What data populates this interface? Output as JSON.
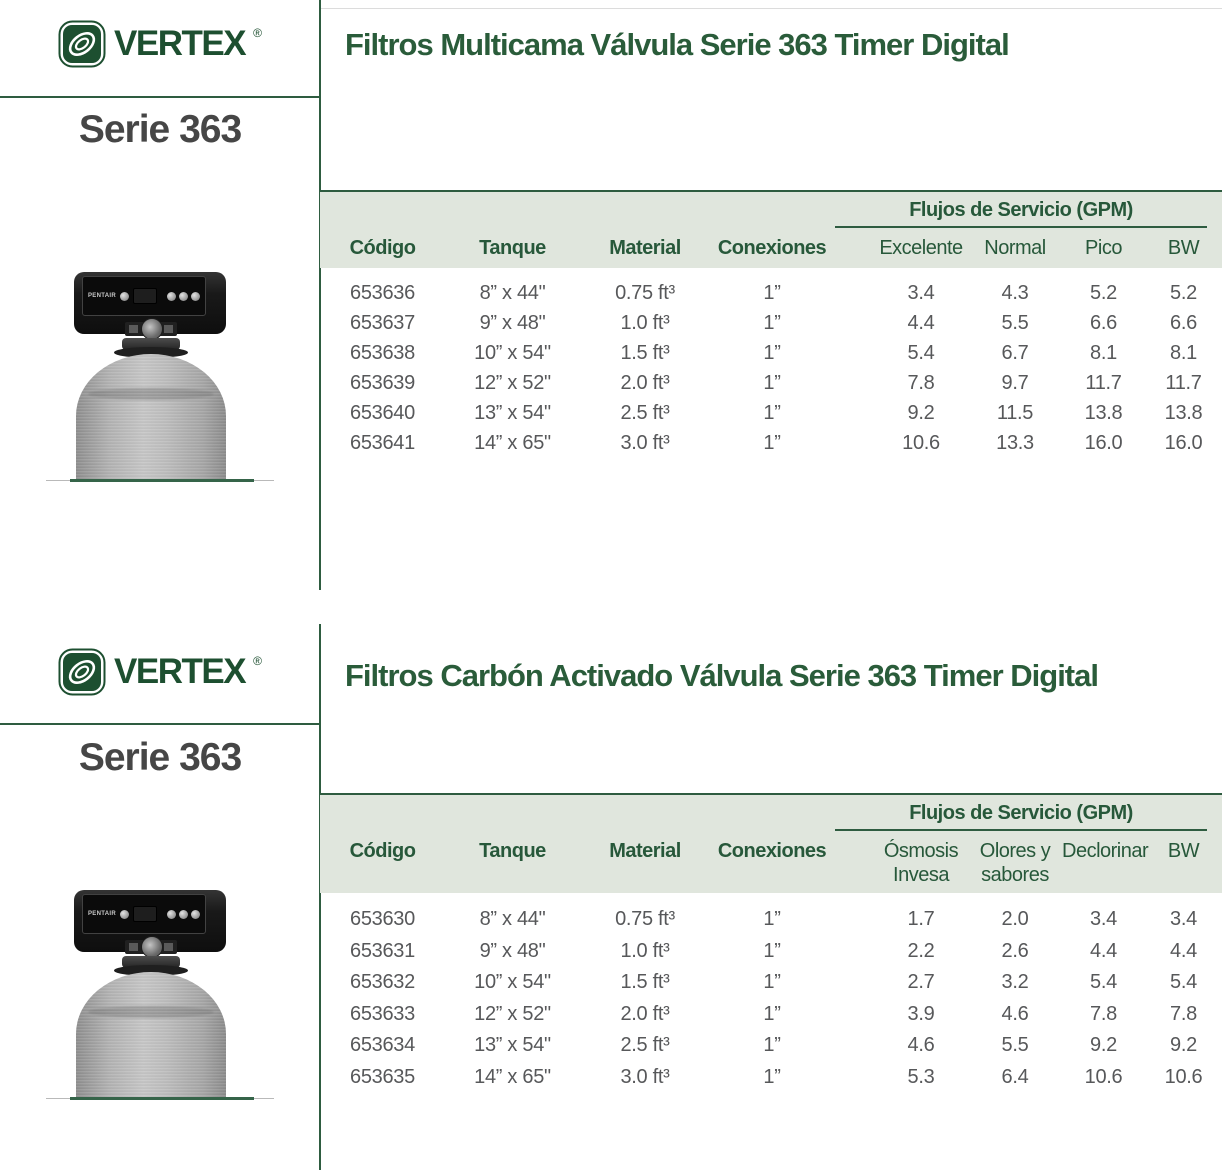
{
  "brand": {
    "name": "VERTEX",
    "registered": "®",
    "valve_brand": "PENTAIR"
  },
  "sections": [
    {
      "series_label": "Serie 363",
      "title": "Filtros Multicama Válvula Serie 363 Timer Digital",
      "table": {
        "flows_group_label": "Flujos de Servicio (GPM)",
        "headers": [
          "Código",
          "Tanque",
          "Material",
          "Conexiones"
        ],
        "flow_headers": [
          "Excelente",
          "Normal",
          "Pico",
          "BW"
        ],
        "rows": [
          {
            "codigo": "653636",
            "tanque": "8” x 44\"",
            "material": "0.75 ft³",
            "conexiones": "1”",
            "f1": "3.4",
            "f2": "4.3",
            "f3": "5.2",
            "f4": "5.2"
          },
          {
            "codigo": "653637",
            "tanque": "9” x 48\"",
            "material": "1.0 ft³",
            "conexiones": "1”",
            "f1": "4.4",
            "f2": "5.5",
            "f3": "6.6",
            "f4": "6.6"
          },
          {
            "codigo": "653638",
            "tanque": "10” x 54\"",
            "material": "1.5 ft³",
            "conexiones": "1”",
            "f1": "5.4",
            "f2": "6.7",
            "f3": "8.1",
            "f4": "8.1"
          },
          {
            "codigo": "653639",
            "tanque": "12” x 52\"",
            "material": "2.0 ft³",
            "conexiones": "1”",
            "f1": "7.8",
            "f2": "9.7",
            "f3": "11.7",
            "f4": "11.7"
          },
          {
            "codigo": "653640",
            "tanque": "13” x 54\"",
            "material": "2.5 ft³",
            "conexiones": "1”",
            "f1": "9.2",
            "f2": "11.5",
            "f3": "13.8",
            "f4": "13.8"
          },
          {
            "codigo": "653641",
            "tanque": "14” x 65\"",
            "material": "3.0 ft³",
            "conexiones": "1”",
            "f1": "10.6",
            "f2": "13.3",
            "f3": "16.0",
            "f4": "16.0"
          }
        ]
      }
    },
    {
      "series_label": "Serie 363",
      "title": "Filtros Carbón Activado Válvula Serie 363 Timer Digital",
      "table": {
        "flows_group_label": "Flujos de Servicio (GPM)",
        "headers": [
          "Código",
          "Tanque",
          "Material",
          "Conexiones"
        ],
        "flow_headers": [
          "Ósmosis\nInvesa",
          "Olores y\nsabores",
          "Declorinar",
          "BW"
        ],
        "rows": [
          {
            "codigo": "653630",
            "tanque": "8” x 44\"",
            "material": "0.75 ft³",
            "conexiones": "1”",
            "f1": "1.7",
            "f2": "2.0",
            "f3": "3.4",
            "f4": "3.4"
          },
          {
            "codigo": "653631",
            "tanque": "9” x 48\"",
            "material": "1.0 ft³",
            "conexiones": "1”",
            "f1": "2.2",
            "f2": "2.6",
            "f3": "4.4",
            "f4": "4.4"
          },
          {
            "codigo": "653632",
            "tanque": "10” x 54\"",
            "material": "1.5 ft³",
            "conexiones": "1”",
            "f1": "2.7",
            "f2": "3.2",
            "f3": "5.4",
            "f4": "5.4"
          },
          {
            "codigo": "653633",
            "tanque": "12” x 52\"",
            "material": "2.0 ft³",
            "conexiones": "1”",
            "f1": "3.9",
            "f2": "4.6",
            "f3": "7.8",
            "f4": "7.8"
          },
          {
            "codigo": "653634",
            "tanque": "13” x 54\"",
            "material": "2.5 ft³",
            "conexiones": "1”",
            "f1": "4.6",
            "f2": "5.5",
            "f3": "9.2",
            "f4": "9.2"
          },
          {
            "codigo": "653635",
            "tanque": "14” x 65\"",
            "material": "3.0 ft³",
            "conexiones": "1”",
            "f1": "5.3",
            "f2": "6.4",
            "f3": "10.6",
            "f4": "10.6"
          }
        ]
      }
    }
  ]
}
